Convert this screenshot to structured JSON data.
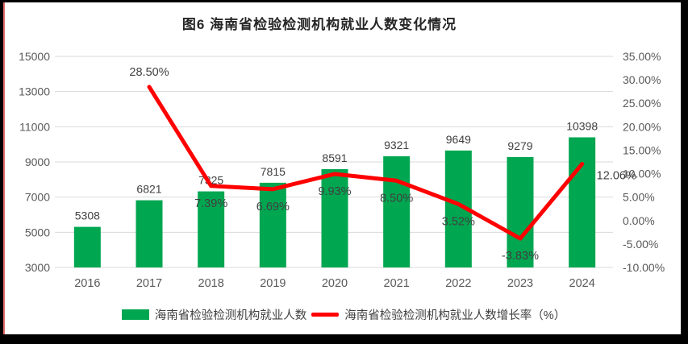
{
  "title": "图6  海南省检验检测机构就业人数变化情况",
  "colors": {
    "bar": "#00A650",
    "line": "#FF0000",
    "grid": "#D9D9D9",
    "axis_text": "#595959",
    "data_label": "#404040",
    "title_text": "#262626",
    "card_bg": "#FFFFFF",
    "page_bg": "#000000",
    "left_accent": "#E06A6A"
  },
  "chart_data": {
    "type": "bar+line combo",
    "categories": [
      "2016",
      "2017",
      "2018",
      "2019",
      "2020",
      "2021",
      "2022",
      "2023",
      "2024"
    ],
    "series": [
      {
        "name": "海南省检验检测机构就业人数",
        "type": "bar",
        "color": "#00A650",
        "values": [
          5308,
          6821,
          7325,
          7815,
          8591,
          9321,
          9649,
          9279,
          10398
        ],
        "labels": [
          "5308",
          "6821",
          "7325",
          "7815",
          "8591",
          "9321",
          "9649",
          "9279",
          "10398"
        ]
      },
      {
        "name": "海南省检验检测机构就业人数增长率（%）",
        "type": "line",
        "color": "#FF0000",
        "values": [
          null,
          28.5,
          7.39,
          6.69,
          9.93,
          8.5,
          3.52,
          -3.83,
          12.06
        ],
        "labels": [
          null,
          "28.50%",
          "7.39%",
          "6.69%",
          "9.93%",
          "8.50%",
          "3.52%",
          "-3.83%",
          "12.06%"
        ],
        "label_placement": [
          null,
          "above",
          "below",
          "below",
          "below",
          "below",
          "below",
          "below",
          "right"
        ]
      }
    ],
    "axes": {
      "left": {
        "min": 3000,
        "max": 15000,
        "tick_labels_top_to_bottom": [
          "15000",
          "13000",
          "11000",
          "9000",
          "7000",
          "5000",
          "3000"
        ]
      },
      "right": {
        "min": -10,
        "max": 35,
        "tick_labels_top_to_bottom": [
          "35.00%",
          "30.00%",
          "25.00%",
          "20.00%",
          "15.00%",
          "10.00%",
          "5.00%",
          "0.00%",
          "-5.00%",
          "-10.00%"
        ]
      }
    },
    "grid": true,
    "legend_position": "bottom",
    "xlabel": "",
    "ylabel": ""
  },
  "legend": {
    "items": [
      {
        "label": "海南省检验检测机构就业人数",
        "swatch": "bar",
        "color": "#00A650"
      },
      {
        "label": "海南省检验检测机构就业人数增长率（%）",
        "swatch": "line",
        "color": "#FF0000"
      }
    ]
  }
}
